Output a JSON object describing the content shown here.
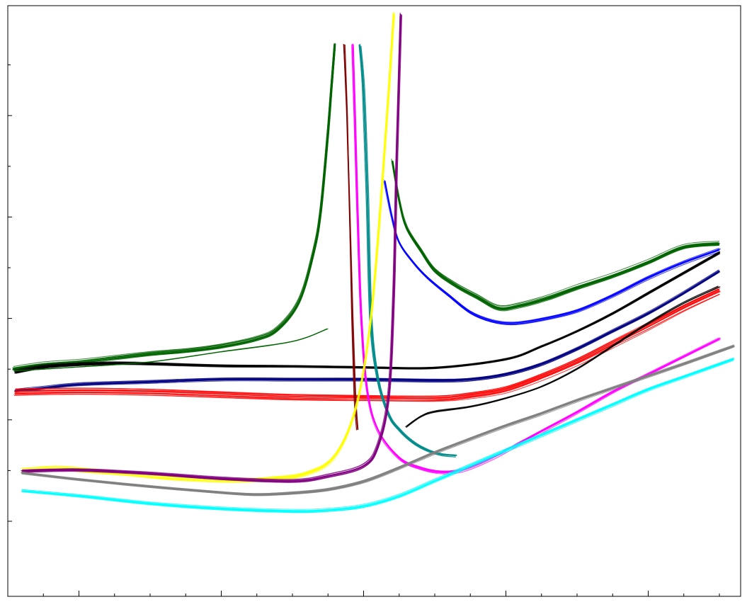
{
  "chart_data": {
    "type": "line",
    "title": "",
    "xlabel": "",
    "ylabel": "",
    "xlim": [
      0,
      10
    ],
    "ylim": [
      0,
      10
    ],
    "grid": false,
    "legend": "none",
    "x_ticks": [
      0.5,
      1,
      1.5,
      2,
      2.5,
      3,
      3.5,
      4,
      4.5,
      5,
      5.5,
      6,
      6.5,
      7,
      7.5,
      8,
      8.5,
      9,
      9.5,
      10
    ],
    "x_major_ticks": [
      1,
      3,
      5,
      7,
      9
    ],
    "y_ticks": [
      0,
      1,
      2,
      3,
      4,
      5,
      6,
      7,
      8,
      9
    ],
    "series": [
      {
        "color": "#006400",
        "bundle": 18,
        "spread": 0.07,
        "x": [
          0.07,
          0.5,
          1,
          1.5,
          2,
          2.5,
          3,
          3.5,
          3.8,
          4.1,
          4.3,
          4.4,
          4.5,
          4.55,
          4.6
        ],
        "y": [
          3.0,
          3.09,
          3.14,
          3.22,
          3.3,
          3.36,
          3.45,
          3.6,
          3.8,
          4.35,
          5.3,
          6.1,
          7.6,
          8.5,
          9.4
        ]
      },
      {
        "color": "#006400",
        "bundle": 18,
        "spread": 0.07,
        "x": [
          5.4,
          5.5,
          5.6,
          5.8,
          6.0,
          6.3,
          6.6,
          6.9,
          7.2,
          7.6,
          8,
          8.5,
          9,
          9.5,
          10.0
        ],
        "y": [
          7.1,
          6.3,
          5.8,
          5.35,
          4.95,
          4.65,
          4.42,
          4.2,
          4.25,
          4.4,
          4.6,
          4.83,
          5.1,
          5.4,
          5.47
        ]
      },
      {
        "color": "#0000ff",
        "bundle": 10,
        "spread": 0.05,
        "x": [
          5.3,
          5.4,
          5.5,
          5.7,
          5.9,
          6.2,
          6.5,
          6.8,
          7.1,
          7.5,
          8,
          8.5,
          9,
          9.5,
          10.0
        ],
        "y": [
          6.7,
          6.0,
          5.5,
          5.1,
          4.8,
          4.45,
          4.12,
          3.95,
          3.9,
          3.98,
          4.15,
          4.45,
          4.8,
          5.1,
          5.35
        ]
      },
      {
        "color": "#000000",
        "bundle": 16,
        "spread": 0.04,
        "x": [
          0.1,
          0.5,
          1,
          1.5,
          2,
          3,
          4,
          5,
          6,
          7,
          7.5,
          8,
          8.5,
          9,
          9.5,
          10.0
        ],
        "y": [
          2.95,
          3.05,
          3.1,
          3.12,
          3.11,
          3.07,
          3.06,
          3.04,
          3.03,
          3.2,
          3.45,
          3.75,
          4.1,
          4.5,
          4.9,
          5.3
        ]
      },
      {
        "color": "#000080",
        "bundle": 16,
        "spread": 0.04,
        "x": [
          0.1,
          0.5,
          1,
          2,
          3,
          4,
          5,
          6,
          6.5,
          7,
          7.5,
          8,
          8.5,
          9,
          9.5,
          10.0
        ],
        "y": [
          2.57,
          2.63,
          2.7,
          2.75,
          2.8,
          2.8,
          2.8,
          2.78,
          2.8,
          2.9,
          3.1,
          3.4,
          3.75,
          4.1,
          4.5,
          4.93
        ]
      },
      {
        "color": "#ff0000",
        "bundle": 16,
        "spread": 0.09,
        "x": [
          0.1,
          1,
          2,
          3,
          4,
          5,
          6,
          6.5,
          7,
          7.5,
          8,
          8.5,
          9,
          9.5,
          10.0
        ],
        "y": [
          2.55,
          2.57,
          2.55,
          2.5,
          2.45,
          2.43,
          2.42,
          2.48,
          2.6,
          2.85,
          3.15,
          3.5,
          3.85,
          4.22,
          4.55
        ]
      },
      {
        "color": "#800000",
        "bundle": 4,
        "spread": 0.03,
        "x": [
          4.72,
          4.76,
          4.8,
          4.84,
          4.88,
          4.92
        ],
        "y": [
          9.4,
          8.0,
          6.0,
          4.0,
          2.5,
          1.8
        ]
      },
      {
        "color": "#ff00ff",
        "bundle": 12,
        "spread": 0.05,
        "x": [
          4.85,
          4.88,
          4.92,
          4.97,
          5.05,
          5.2,
          5.5,
          5.8,
          6.1,
          6.4,
          6.8,
          7.2,
          7.6,
          8,
          8.5,
          9,
          9.5,
          10.0
        ],
        "y": [
          9.4,
          8.0,
          6.0,
          4.0,
          2.6,
          1.8,
          1.25,
          1.05,
          0.97,
          1.02,
          1.25,
          1.55,
          1.85,
          2.15,
          2.55,
          2.9,
          3.25,
          3.6
        ]
      },
      {
        "color": "#008b8b",
        "bundle": 6,
        "spread": 0.04,
        "x": [
          4.95,
          5.0,
          5.05,
          5.1,
          5.2,
          5.35,
          5.5,
          5.7,
          5.9,
          6.1,
          6.3
        ],
        "y": [
          9.4,
          8.5,
          6.5,
          4.0,
          2.8,
          2.1,
          1.8,
          1.55,
          1.4,
          1.32,
          1.3
        ]
      },
      {
        "color": "#ffff00",
        "bundle": 12,
        "spread": 0.06,
        "x": [
          0.2,
          0.7,
          1.2,
          1.7,
          2.2,
          2.7,
          3.2,
          3.7,
          4.2,
          4.6,
          4.9,
          5.1,
          5.25,
          5.35,
          5.42
        ],
        "y": [
          1.0,
          1.05,
          1.0,
          0.95,
          0.88,
          0.84,
          0.82,
          0.85,
          0.95,
          1.3,
          2.3,
          4.0,
          6.5,
          8.5,
          10.0
        ]
      },
      {
        "color": "#800080",
        "bundle": 14,
        "spread": 0.05,
        "x": [
          0.2,
          1,
          2,
          3,
          4,
          4.5,
          5,
          5.2,
          5.35,
          5.42,
          5.46,
          5.5,
          5.52
        ],
        "y": [
          1.0,
          1.02,
          0.95,
          0.85,
          0.8,
          0.9,
          1.1,
          1.5,
          2.5,
          4.5,
          7.0,
          9.0,
          10.0
        ]
      },
      {
        "color": "#808080",
        "bundle": 16,
        "spread": 0.04,
        "x": [
          0.2,
          1,
          2,
          3,
          3.5,
          4,
          4.5,
          5,
          5.5,
          6,
          6.5,
          7,
          7.5,
          8,
          8.5,
          9,
          9.5,
          10.0,
          10.2
        ],
        "y": [
          0.95,
          0.82,
          0.68,
          0.56,
          0.52,
          0.55,
          0.62,
          0.78,
          1.05,
          1.35,
          1.62,
          1.88,
          2.12,
          2.38,
          2.62,
          2.86,
          3.1,
          3.35,
          3.45
        ]
      },
      {
        "color": "#00ffff",
        "bundle": 14,
        "spread": 0.04,
        "x": [
          0.2,
          1,
          2,
          3,
          4,
          4.5,
          5,
          5.5,
          6,
          6.5,
          7,
          7.5,
          8,
          8.5,
          9,
          9.5,
          10.0,
          10.2
        ],
        "y": [
          0.6,
          0.5,
          0.35,
          0.25,
          0.2,
          0.22,
          0.3,
          0.5,
          0.8,
          1.1,
          1.4,
          1.7,
          2.0,
          2.3,
          2.6,
          2.85,
          3.1,
          3.2
        ]
      },
      {
        "color": "#000000",
        "bundle": 3,
        "spread": 0.06,
        "x": [
          5.6,
          5.8,
          6.0,
          6.5,
          7,
          7.5,
          8,
          8.5,
          9,
          9.5,
          10.0
        ],
        "y": [
          1.85,
          2.05,
          2.15,
          2.25,
          2.42,
          2.65,
          3.0,
          3.45,
          3.9,
          4.3,
          4.62
        ]
      },
      {
        "color": "#006400",
        "bundle": 2,
        "spread": 0.02,
        "x": [
          0.1,
          1,
          2,
          3,
          4,
          4.5
        ],
        "y": [
          2.97,
          3.05,
          3.15,
          3.35,
          3.55,
          3.8
        ]
      }
    ]
  }
}
